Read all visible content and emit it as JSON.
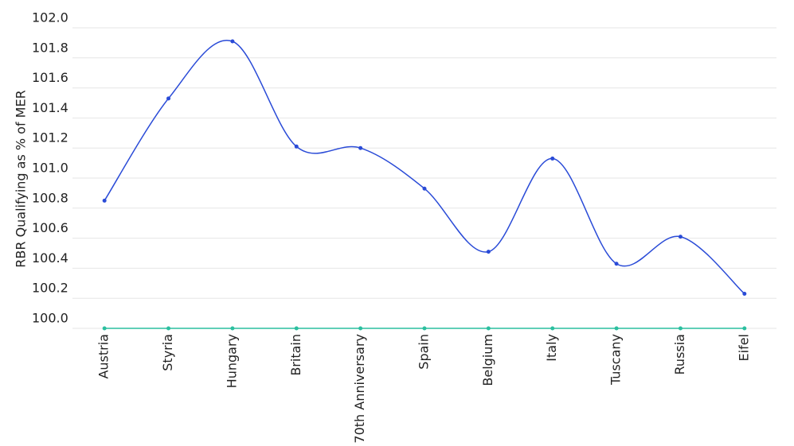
{
  "chart_data": {
    "type": "line",
    "y_label": "RBR Qualifying as % of MER",
    "categories": [
      "Austria",
      "Styria",
      "Hungary",
      "Britain",
      "70th Anniversary",
      "Spain",
      "Belgium",
      "Italy",
      "Tuscany",
      "Russia",
      "Eifel"
    ],
    "series": [
      {
        "color": "#2a4bd7",
        "values": [
          100.85,
          101.53,
          101.91,
          101.21,
          101.2,
          100.93,
          100.51,
          101.13,
          100.43,
          100.61,
          100.23
        ]
      },
      {
        "color": "#2bbf9f",
        "values": [
          100,
          100,
          100,
          100,
          100,
          100,
          100,
          100,
          100,
          100,
          100
        ]
      }
    ],
    "ylim": [
      100,
      102
    ],
    "yticks": [
      {
        "value": 100,
        "label": "100.0"
      },
      100.2,
      100.4,
      100.6,
      100.8,
      {
        "value": 101,
        "label": "101.0"
      },
      101.2,
      101.4,
      101.6,
      101.8,
      {
        "value": 102,
        "label": "102.0"
      }
    ],
    "grid": true
  }
}
